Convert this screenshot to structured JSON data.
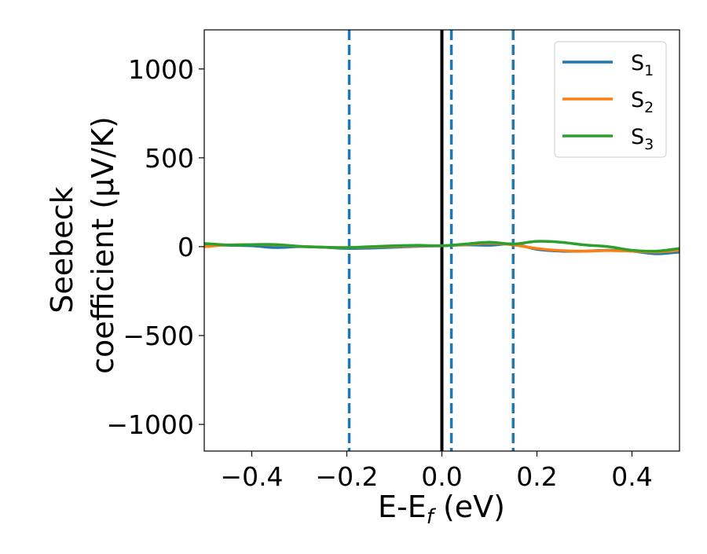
{
  "chart_data": {
    "type": "line",
    "xlabel": {
      "base": "E-E",
      "sub": "f",
      "tail": " (eV)"
    },
    "ylabel": {
      "line1": "Seebeck",
      "line2": "coefficient  (μV/K)"
    },
    "xlim": [
      -0.5,
      0.5
    ],
    "ylim": [
      -1150,
      1220
    ],
    "xticks": [
      -0.4,
      -0.2,
      0.0,
      0.2,
      0.4
    ],
    "xtick_labels": [
      "−0.4",
      "−0.2",
      "0.0",
      "0.2",
      "0.4"
    ],
    "yticks": [
      1000,
      500,
      0,
      -500,
      -1000
    ],
    "ytick_labels": [
      "1000",
      "500",
      "0",
      "−500",
      "−1000"
    ],
    "legend_position": "top-right",
    "vlines": [
      {
        "x": 0.0,
        "color": "#000000",
        "style": "solid"
      },
      {
        "x": -0.195,
        "color": "#1f77b4",
        "style": "dashed"
      },
      {
        "x": 0.02,
        "color": "#1f77b4",
        "style": "dashed"
      },
      {
        "x": 0.15,
        "color": "#1f77b4",
        "style": "dashed"
      }
    ],
    "series": [
      {
        "name": "S",
        "sub": "1",
        "color": "#1f77b4",
        "x": [
          -0.5,
          -0.45,
          -0.4,
          -0.35,
          -0.3,
          -0.25,
          -0.2,
          -0.15,
          -0.1,
          -0.05,
          0.0,
          0.05,
          0.1,
          0.15,
          0.2,
          0.25,
          0.3,
          0.35,
          0.4,
          0.45,
          0.5
        ],
        "y": [
          10,
          8,
          5,
          -5,
          0,
          -3,
          -10,
          -8,
          -3,
          2,
          5,
          10,
          8,
          15,
          -15,
          -25,
          -25,
          -20,
          -25,
          -40,
          -30
        ]
      },
      {
        "name": "S",
        "sub": "2",
        "color": "#ff7f0e",
        "x": [
          -0.5,
          -0.45,
          -0.4,
          -0.35,
          -0.3,
          -0.25,
          -0.2,
          -0.15,
          -0.1,
          -0.05,
          0.0,
          0.05,
          0.1,
          0.15,
          0.2,
          0.25,
          0.3,
          0.35,
          0.4,
          0.45,
          0.5
        ],
        "y": [
          0,
          10,
          12,
          10,
          2,
          -3,
          -5,
          -2,
          2,
          5,
          5,
          12,
          20,
          10,
          -10,
          -22,
          -25,
          -22,
          -25,
          -30,
          -20
        ]
      },
      {
        "name": "S",
        "sub": "3",
        "color": "#2ca02c",
        "x": [
          -0.5,
          -0.45,
          -0.4,
          -0.35,
          -0.3,
          -0.25,
          -0.2,
          -0.15,
          -0.1,
          -0.05,
          0.0,
          0.05,
          0.1,
          0.15,
          0.2,
          0.25,
          0.3,
          0.35,
          0.4,
          0.45,
          0.5
        ],
        "y": [
          18,
          10,
          12,
          12,
          2,
          -3,
          -5,
          0,
          5,
          8,
          5,
          15,
          25,
          15,
          30,
          25,
          10,
          0,
          -20,
          -25,
          -10
        ]
      }
    ]
  }
}
